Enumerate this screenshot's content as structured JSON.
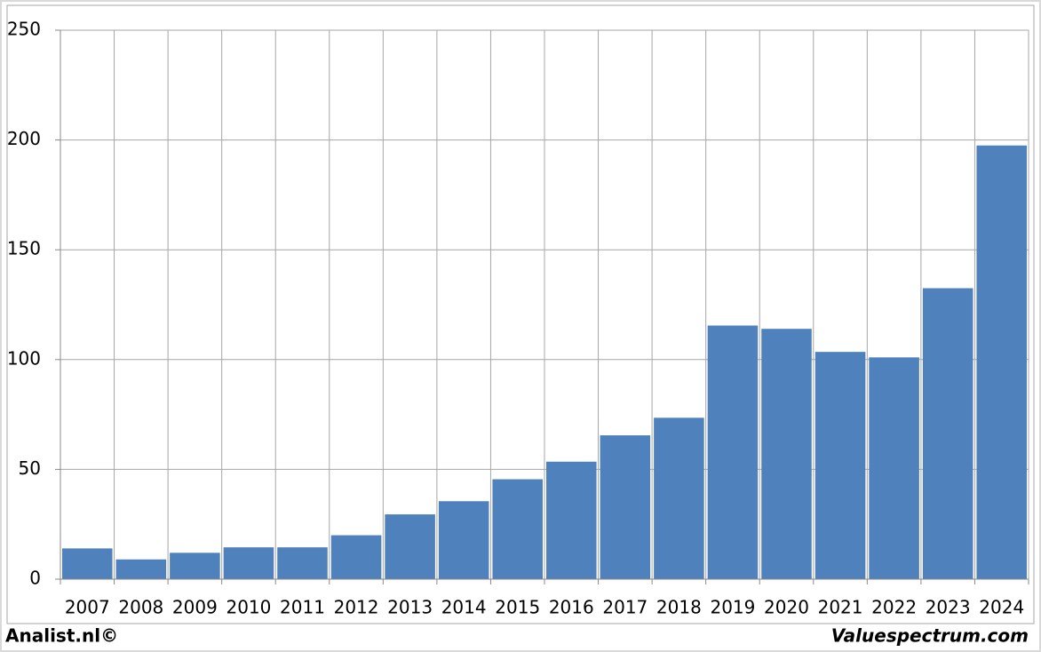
{
  "chart_data": {
    "type": "bar",
    "categories": [
      "2007",
      "2008",
      "2009",
      "2010",
      "2011",
      "2012",
      "2013",
      "2014",
      "2015",
      "2016",
      "2017",
      "2018",
      "2019",
      "2020",
      "2021",
      "2022",
      "2023",
      "2024"
    ],
    "values": [
      14,
      9,
      12,
      14.5,
      14.5,
      20,
      29.5,
      35.5,
      45.5,
      53.5,
      65.5,
      73.5,
      115.5,
      114,
      103.5,
      101,
      132.5,
      197.5
    ],
    "color": "#4f81bd",
    "ylim": [
      0,
      250
    ],
    "yticks": [
      0,
      50,
      100,
      150,
      200,
      250
    ],
    "grid": true
  },
  "footer": {
    "left": "Analist.nl©",
    "right": "Valuespectrum.com"
  }
}
